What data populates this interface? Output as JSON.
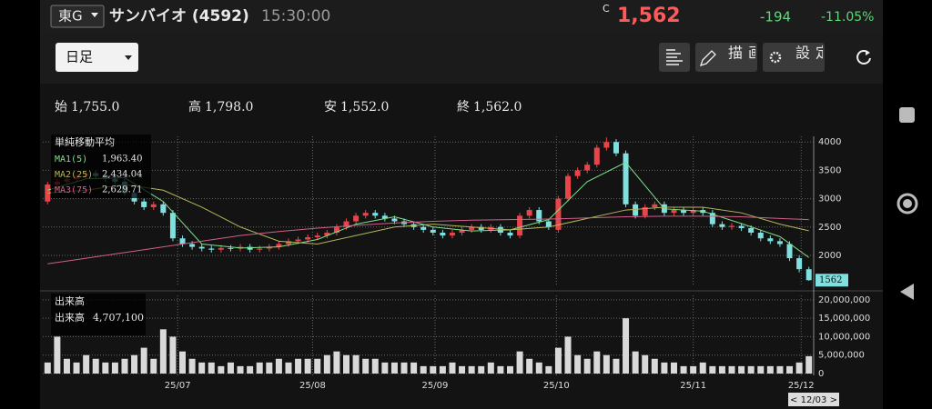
{
  "header": {
    "exchange": "東G",
    "name": "サンバイオ (4592)",
    "time": "15:30:00",
    "price_tag": "C",
    "price": "1,562",
    "change": "-194",
    "change_pct": "-11.05%"
  },
  "toolbar": {
    "period": "日足",
    "draw": "描画",
    "settings": "設定"
  },
  "ohlc": [
    {
      "label": "始",
      "value": "1,755.0"
    },
    {
      "label": "高",
      "value": "1,798.0"
    },
    {
      "label": "安",
      "value": "1,552.0"
    },
    {
      "label": "終",
      "value": "1,562.0"
    }
  ],
  "footer": {
    "date": "< 12/03 >"
  },
  "chart_data": [
    {
      "type": "candlestick",
      "up_color": "#e8454a",
      "down_color": "#7fe0e0",
      "grid": true,
      "xlim": [
        -0.5,
        79.5
      ],
      "xticks": [
        {
          "value": 13.5,
          "label": "25/07"
        },
        {
          "value": 27.5,
          "label": "25/08"
        },
        {
          "value": 40.2,
          "label": "25/09"
        },
        {
          "value": 52.8,
          "label": "25/10"
        },
        {
          "value": 67,
          "label": "25/11"
        },
        {
          "value": 78.2,
          "label": "25/12"
        }
      ],
      "ylim": [
        1470,
        4100
      ],
      "yticks": [
        2000,
        2500,
        3000,
        3500,
        4000
      ],
      "open": [
        2950,
        3250,
        3300,
        3350,
        3400,
        3450,
        3400,
        3350,
        3300,
        3100,
        2950,
        2850,
        2900,
        2750,
        2300,
        2200,
        2150,
        2120,
        2100,
        2130,
        2120,
        2150,
        2100,
        2120,
        2150,
        2200,
        2250,
        2280,
        2320,
        2350,
        2400,
        2500,
        2600,
        2700,
        2750,
        2700,
        2650,
        2600,
        2550,
        2500,
        2450,
        2400,
        2350,
        2400,
        2450,
        2500,
        2450,
        2500,
        2400,
        2350,
        2700,
        2800,
        2600,
        2450,
        3000,
        3400,
        3500,
        3600,
        3900,
        4000,
        3800,
        2900,
        2700,
        2850,
        2900,
        2750,
        2800,
        2750,
        2800,
        2750,
        2550,
        2500,
        2520,
        2480,
        2400,
        2300,
        2250,
        2200,
        1950,
        1755
      ],
      "high": [
        3300,
        3350,
        3400,
        3450,
        3500,
        3500,
        3450,
        3400,
        3350,
        3150,
        3000,
        2950,
        2950,
        2800,
        2350,
        2250,
        2200,
        2170,
        2180,
        2180,
        2200,
        2200,
        2170,
        2200,
        2250,
        2300,
        2330,
        2370,
        2400,
        2450,
        2550,
        2650,
        2750,
        2800,
        2800,
        2750,
        2700,
        2650,
        2600,
        2550,
        2500,
        2450,
        2450,
        2500,
        2550,
        2550,
        2550,
        2550,
        2450,
        2750,
        2850,
        2850,
        2650,
        3050,
        3450,
        3550,
        3650,
        3950,
        4080,
        4050,
        3850,
        2950,
        2900,
        2950,
        2950,
        2850,
        2850,
        2850,
        2850,
        2800,
        2600,
        2570,
        2570,
        2530,
        2450,
        2350,
        2300,
        2250,
        2000,
        1798
      ],
      "low": [
        2900,
        3200,
        3250,
        3300,
        3350,
        3350,
        3300,
        3250,
        3050,
        2900,
        2800,
        2800,
        2700,
        2250,
        2150,
        2100,
        2070,
        2050,
        2050,
        2070,
        2070,
        2050,
        2050,
        2070,
        2100,
        2150,
        2200,
        2230,
        2270,
        2300,
        2350,
        2450,
        2550,
        2650,
        2650,
        2600,
        2550,
        2500,
        2450,
        2400,
        2350,
        2300,
        2300,
        2350,
        2400,
        2400,
        2400,
        2350,
        2300,
        2300,
        2650,
        2550,
        2450,
        2400,
        2950,
        3350,
        3450,
        3550,
        3850,
        3750,
        2850,
        2650,
        2650,
        2800,
        2700,
        2700,
        2700,
        2700,
        2700,
        2500,
        2450,
        2450,
        2430,
        2350,
        2250,
        2200,
        2150,
        1900,
        1700,
        1552
      ],
      "close": [
        3250,
        3300,
        3350,
        3400,
        3450,
        3400,
        3350,
        3300,
        3100,
        2950,
        2850,
        2900,
        2750,
        2300,
        2200,
        2150,
        2120,
        2100,
        2130,
        2120,
        2150,
        2100,
        2120,
        2150,
        2200,
        2250,
        2280,
        2320,
        2350,
        2400,
        2500,
        2600,
        2700,
        2750,
        2700,
        2650,
        2600,
        2550,
        2500,
        2450,
        2400,
        2350,
        2400,
        2450,
        2500,
        2450,
        2500,
        2400,
        2350,
        2700,
        2800,
        2600,
        2500,
        3000,
        3400,
        3500,
        3600,
        3900,
        4000,
        3800,
        2900,
        2700,
        2850,
        2900,
        2750,
        2800,
        2750,
        2800,
        2750,
        2550,
        2500,
        2520,
        2480,
        2400,
        2300,
        2250,
        2200,
        1950,
        1756,
        1562
      ],
      "legend_title": "単純移動平均",
      "series": [
        {
          "name": "MA1(5)",
          "value_label": "1,963.40",
          "color": "#7ee08a",
          "x": [
            0,
            4,
            8,
            12,
            16,
            20,
            24,
            28,
            32,
            36,
            40,
            44,
            48,
            52,
            56,
            60,
            64,
            68,
            72,
            76,
            79
          ],
          "values": [
            3150,
            3350,
            3370,
            2950,
            2200,
            2130,
            2150,
            2280,
            2550,
            2680,
            2500,
            2430,
            2450,
            2630,
            3300,
            3640,
            2820,
            2780,
            2560,
            2330,
            1963.4
          ]
        },
        {
          "name": "MA2(25)",
          "value_label": "2,434.04",
          "color": "#b5b55a",
          "x": [
            0,
            4,
            8,
            12,
            16,
            20,
            24,
            28,
            32,
            36,
            40,
            44,
            48,
            52,
            56,
            60,
            64,
            68,
            72,
            76,
            79
          ],
          "values": [
            3100,
            3150,
            3250,
            3150,
            2850,
            2500,
            2250,
            2200,
            2350,
            2500,
            2550,
            2500,
            2450,
            2500,
            2650,
            2800,
            2850,
            2850,
            2750,
            2550,
            2434.04
          ]
        },
        {
          "name": "MA3(75)",
          "value_label": "2,629.71",
          "color": "#d0608a",
          "x": [
            0,
            4,
            8,
            12,
            16,
            20,
            24,
            28,
            32,
            36,
            40,
            44,
            48,
            52,
            56,
            60,
            64,
            68,
            72,
            76,
            79
          ],
          "values": [
            1850,
            1950,
            2050,
            2150,
            2250,
            2350,
            2420,
            2480,
            2530,
            2570,
            2600,
            2620,
            2630,
            2640,
            2660,
            2680,
            2690,
            2690,
            2680,
            2650,
            2629.71
          ]
        }
      ]
    },
    {
      "type": "bar",
      "title": "出来高",
      "color": "#d9d9d9",
      "series_name": "出来高",
      "last_label": "4,707,100",
      "ylim": [
        0,
        21200000
      ],
      "yticks": [
        0,
        {
          "value": 5000000,
          "label": "5,000,000"
        },
        {
          "value": 10000000,
          "label": "10,000,000"
        },
        {
          "value": 15000000,
          "label": "15,000,000"
        },
        {
          "value": 20000000,
          "label": "20,000,000"
        }
      ],
      "values": [
        3000000,
        10000000,
        4000000,
        3000000,
        5000000,
        4000000,
        3000000,
        3000000,
        4000000,
        5000000,
        7000000,
        4000000,
        12000000,
        10000000,
        6000000,
        4000000,
        3000000,
        3000000,
        2000000,
        3000000,
        2000000,
        2000000,
        3000000,
        3000000,
        4000000,
        3000000,
        4000000,
        4000000,
        4000000,
        5000000,
        6000000,
        5000000,
        5000000,
        4000000,
        4000000,
        3000000,
        3000000,
        3000000,
        3000000,
        2000000,
        2000000,
        2000000,
        3000000,
        2000000,
        2000000,
        2000000,
        3000000,
        2000000,
        2000000,
        6000000,
        4000000,
        3000000,
        2000000,
        7000000,
        10000000,
        5000000,
        4000000,
        6000000,
        5000000,
        4000000,
        15000000,
        6000000,
        5000000,
        4000000,
        3000000,
        3000000,
        2000000,
        2000000,
        3000000,
        2000000,
        2000000,
        2000000,
        2000000,
        2000000,
        2000000,
        2000000,
        2000000,
        2000000,
        3000000,
        4707100
      ]
    }
  ]
}
